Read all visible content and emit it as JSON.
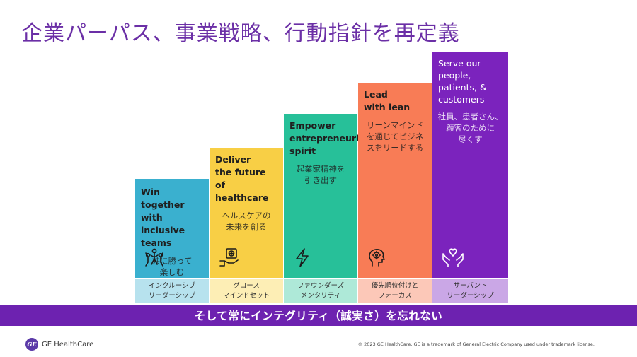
{
  "title": "企業パーパス、事業戦略、行動指針を再定義",
  "columns": [
    {
      "en": "Win together\nwith inclusive\nteams",
      "jp": "共に勝って\n楽しむ",
      "icon": "team-icon",
      "sub": "インクルーシブ\nリーダーシップ",
      "color": "#3ab0cf"
    },
    {
      "en": "Deliver\nthe future\nof healthcare",
      "jp": "ヘルスケアの\n未来を創る",
      "icon": "hand-medical-icon",
      "sub": "グロース\nマインドセット",
      "color": "#f8cf45"
    },
    {
      "en": "Empower\nentrepreneurial\nspirit",
      "jp": "起業家精神を\n引き出す",
      "icon": "lightning-icon",
      "sub": "ファウンダーズ\nメンタリティ",
      "color": "#27c099"
    },
    {
      "en": "Lead\nwith lean",
      "jp": "リーンマインド\nを通じてビジネ\nスをリードする",
      "icon": "head-gear-icon",
      "sub": "優先順位付けと\nフォーカス",
      "color": "#f87c56"
    },
    {
      "en": "Serve our\npeople,\npatients, &\ncustomers",
      "jp": "社員、患者さん、\n顧客のために\n尽くす",
      "icon": "hands-heart-icon",
      "sub": "サーバント\nリーダーシップ",
      "color": "#7b23bd"
    }
  ],
  "banner": "そして常にインテグリティ（誠実さ）を忘れない",
  "logo": {
    "text": "GE HealthCare",
    "mark": "GE"
  },
  "copyright": "© 2023 GE HealthCare. GE is a trademark of General Electric Company used under trademark license."
}
